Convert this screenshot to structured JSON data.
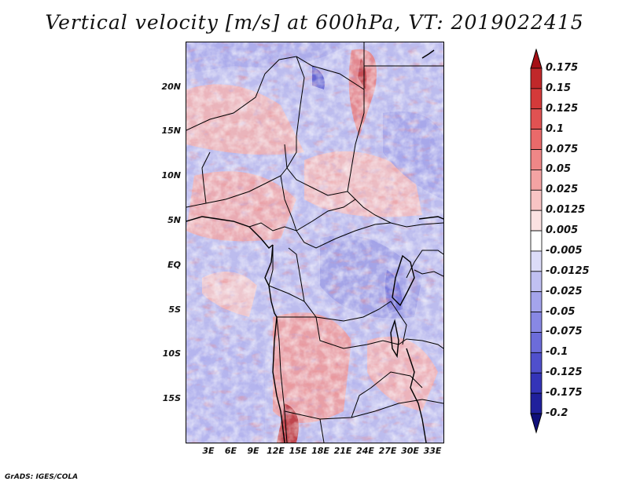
{
  "title": "Vertical velocity [m/s] at 600hPa, VT: 2019022415",
  "footer": "GrADS: IGES/COLA",
  "map": {
    "lat_labels": [
      "20N",
      "15N",
      "10N",
      "5N",
      "EQ",
      "5S",
      "10S",
      "15S"
    ],
    "lon_labels": [
      "3E",
      "6E",
      "9E",
      "12E",
      "15E",
      "18E",
      "21E",
      "24E",
      "27E",
      "30E",
      "33E"
    ]
  },
  "colorbar": {
    "labels": [
      "0.175",
      "0.15",
      "0.125",
      "0.1",
      "0.075",
      "0.05",
      "0.025",
      "0.0125",
      "0.005",
      "-0.005",
      "-0.0125",
      "-0.025",
      "-0.05",
      "-0.075",
      "-0.1",
      "-0.125",
      "-0.175",
      "-0.2"
    ],
    "colors": [
      "#a50f15",
      "#c0282a",
      "#d43a3a",
      "#e05252",
      "#e96a6a",
      "#ef8787",
      "#f4a3a3",
      "#f8c4c4",
      "#fbe2e2",
      "#ffffff",
      "#dcdcf8",
      "#c0c0f2",
      "#a4a4ec",
      "#8888e4",
      "#6c6cda",
      "#5050cc",
      "#3434b8",
      "#20209c",
      "#10107a"
    ]
  }
}
